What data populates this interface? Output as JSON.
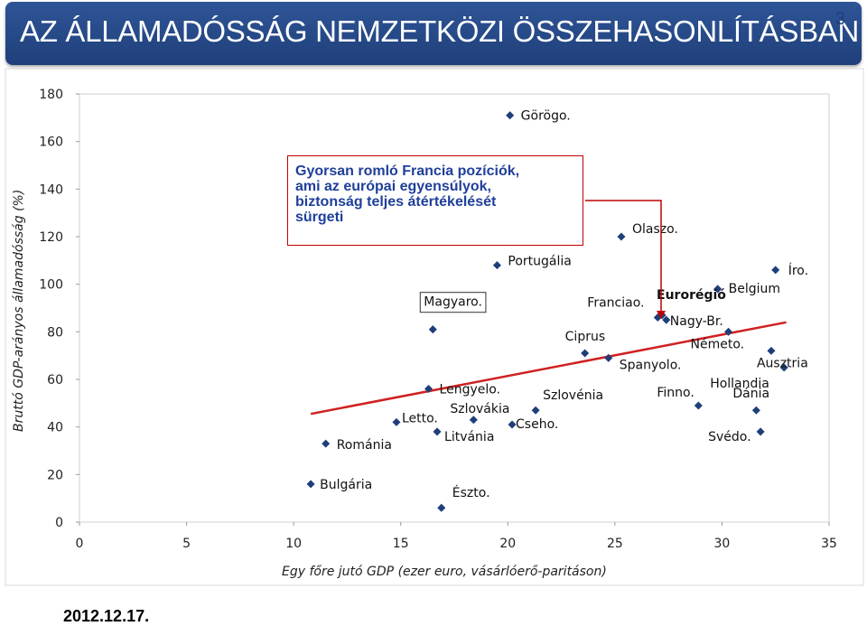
{
  "header": {
    "title": "AZ ÁLLAMADÓSSÁG NEMZETKÖZI ÖSSZEHASONLÍTÁSBAN",
    "page_number": "3"
  },
  "footer": {
    "date": "2012.12.17."
  },
  "callout": {
    "lines": [
      "Gyorsan romló Francia pozíciók,",
      "ami az európai egyensúlyok,",
      "biztonság teljes átértékelését",
      "sürgeti"
    ]
  },
  "chart_data": {
    "type": "scatter",
    "xlabel": "Egy főre jutó GDP (ezer euro, vásárlóerő-paritáson)",
    "ylabel": "Bruttó GDP-arányos államadósság (%)",
    "xlim": [
      0,
      35
    ],
    "ylim": [
      0,
      180
    ],
    "xticks": [
      "0",
      "5",
      "10",
      "15",
      "20",
      "25",
      "30",
      "35"
    ],
    "yticks": [
      "0",
      "20",
      "40",
      "60",
      "80",
      "100",
      "120",
      "140",
      "160",
      "180"
    ],
    "grid": false,
    "points": [
      {
        "name": "Görögo.",
        "x": 20.1,
        "y": 171
      },
      {
        "name": "Olaszo.",
        "x": 25.3,
        "y": 120
      },
      {
        "name": "Portugália",
        "x": 19.5,
        "y": 108
      },
      {
        "name": "Íro.",
        "x": 32.5,
        "y": 106
      },
      {
        "name": "Belgium",
        "x": 29.8,
        "y": 98
      },
      {
        "name": "Magyaro.",
        "x": 16.5,
        "y": 81
      },
      {
        "name": "Franciao.",
        "x": 27.0,
        "y": 86
      },
      {
        "name": "Eurorégió",
        "x": 27.2,
        "y": 87
      },
      {
        "name": "Nagy-Br.",
        "x": 27.4,
        "y": 85
      },
      {
        "name": "Németo.",
        "x": 30.3,
        "y": 80
      },
      {
        "name": "Ausztria",
        "x": 32.3,
        "y": 72
      },
      {
        "name": "Ciprus",
        "x": 23.6,
        "y": 71
      },
      {
        "name": "Spanyolo.",
        "x": 24.7,
        "y": 69
      },
      {
        "name": "Hollandia",
        "x": 32.9,
        "y": 65
      },
      {
        "name": "Lengyelo.",
        "x": 16.3,
        "y": 56
      },
      {
        "name": "Finno.",
        "x": 28.9,
        "y": 49
      },
      {
        "name": "Szlovénia",
        "x": 21.3,
        "y": 47
      },
      {
        "name": "Dánia",
        "x": 31.6,
        "y": 47
      },
      {
        "name": "Szlovákia",
        "x": 18.4,
        "y": 43
      },
      {
        "name": "Letto.",
        "x": 14.8,
        "y": 42
      },
      {
        "name": "Cseho.",
        "x": 20.2,
        "y": 41
      },
      {
        "name": "Litvánia",
        "x": 16.7,
        "y": 38
      },
      {
        "name": "Svédo.",
        "x": 31.8,
        "y": 38
      },
      {
        "name": "Románia",
        "x": 11.5,
        "y": 33
      },
      {
        "name": "Bulgária",
        "x": 10.8,
        "y": 16
      },
      {
        "name": "Észto.",
        "x": 16.9,
        "y": 6
      }
    ],
    "trendline": {
      "x": [
        10.8,
        33.0
      ],
      "y": [
        45.5,
        84.0
      ],
      "color": "#d02020"
    },
    "marker_color": "#1f3f7a",
    "highlight": {
      "name": "Magyaro.",
      "box": true
    }
  }
}
